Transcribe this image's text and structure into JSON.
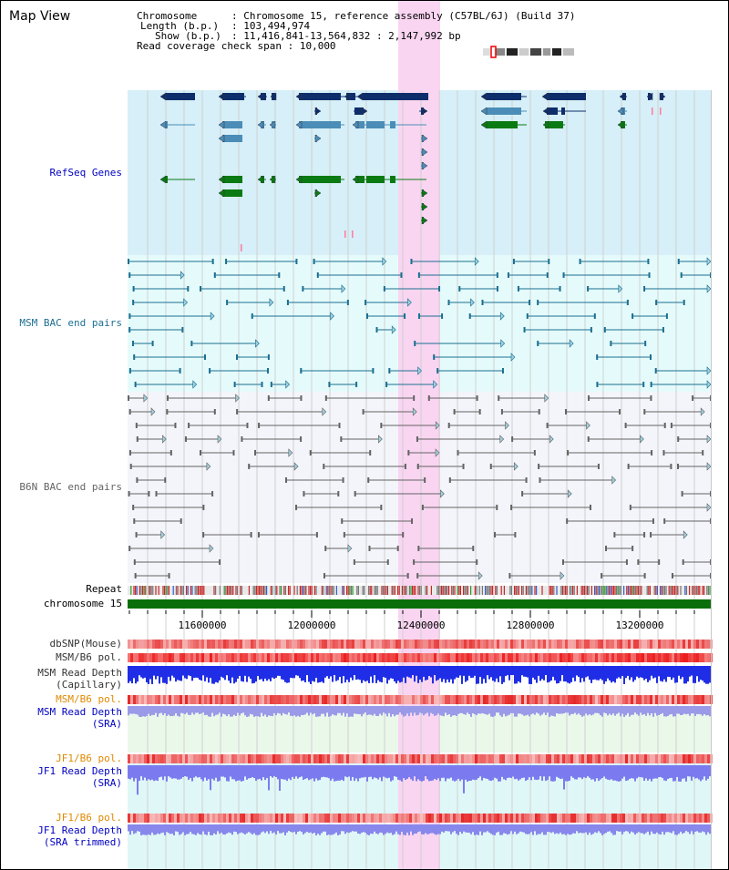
{
  "title": "Map View",
  "info": [
    {
      "key": "Chromosome",
      "value": ": Chromosome 15, reference assembly (C57BL/6J) (Build 37)"
    },
    {
      "key": "Length (b.p.)",
      "value": ": 103,494,974"
    },
    {
      "key": "Show (b.p.)",
      "value": ": 11,416,841-13,564,832 : 2,147,992 bp"
    },
    {
      "key": "Read coverage check span",
      "value": ": 10,000"
    }
  ],
  "tracks": {
    "refseq": "RefSeq Genes",
    "msm_bac": "MSM BAC end pairs",
    "b6n_bac": "B6N BAC end pairs",
    "repeat": "Repeat",
    "chromosome": "chromosome 15",
    "dbsnp": "dbSNP(Mouse)",
    "msm_b6_pol_1": "MSM/B6 pol.",
    "msm_read_depth_cap": "MSM Read Depth\n(Capillary)",
    "msm_b6_pol_2": "MSM/B6 pol.",
    "msm_read_depth_sra": "MSM Read Depth\n(SRA)",
    "jf1_b6_pol_1": "JF1/B6 pol.",
    "jf1_read_depth_sra": "JF1 Read Depth\n(SRA)",
    "jf1_b6_pol_2": "JF1/B6 pol.",
    "jf1_read_depth_trim": "JF1 Read Depth\n(SRA trimmed)"
  },
  "axis": {
    "ticks": [
      "11600000",
      "12000000",
      "12400000",
      "12800000",
      "13200000"
    ]
  },
  "colors": {
    "refseq_bg": "#d6eff8",
    "msm_bg": "#e5fbfb",
    "b6n_bg": "#f3f5fa",
    "highlight": "#f9d5f1",
    "gene_dark": "#0e2e6b",
    "gene_mid": "#4b8db7",
    "gene_green": "#0a7a12",
    "msm_line": "#1c6f91",
    "b6n_line": "#646464",
    "label_blue": "#0000c0",
    "label_orange": "#e08a00"
  }
}
